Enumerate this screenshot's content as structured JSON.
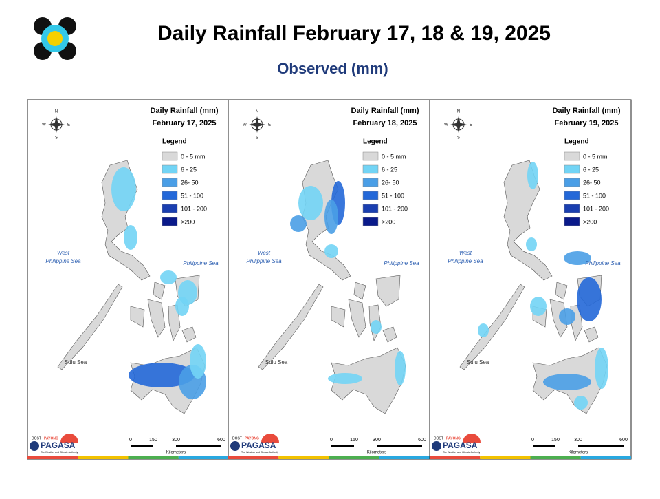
{
  "header": {
    "title": "Daily Rainfall February 17, 18 & 19, 2025",
    "subtitle": "Observed (mm)"
  },
  "panels": [
    {
      "heading": "Daily Rainfall (mm)",
      "date": "February 17, 2025"
    },
    {
      "heading": "Daily Rainfall (mm)",
      "date": "February 18, 2025"
    },
    {
      "heading": "Daily Rainfall (mm)",
      "date": "February 19, 2025"
    }
  ],
  "legend": {
    "title": "Legend",
    "items": [
      {
        "label": "0 - 5 mm",
        "color": "#d9d9d9"
      },
      {
        "label": "6 - 25",
        "color": "#72d4f5"
      },
      {
        "label": "26- 50",
        "color": "#4a9ee6"
      },
      {
        "label": "51 - 100",
        "color": "#2468d8"
      },
      {
        "label": "101 - 200",
        "color": "#1a3fb0"
      },
      {
        "label": ">200",
        "color": "#0a1a8a"
      }
    ]
  },
  "seas": {
    "west": [
      "West",
      "Philippine Sea"
    ],
    "east": "Philippine Sea",
    "south": "Sulu Sea"
  },
  "compass": [
    "N",
    "E",
    "S",
    "W"
  ],
  "scale": {
    "ticks": [
      0,
      150,
      300,
      600
    ],
    "unit": "Kilometers"
  },
  "logo": {
    "dost": "DOST",
    "payong": "PAYONG",
    "agency": "PAGASA",
    "tagline": "The Weather and Climate Authority"
  }
}
